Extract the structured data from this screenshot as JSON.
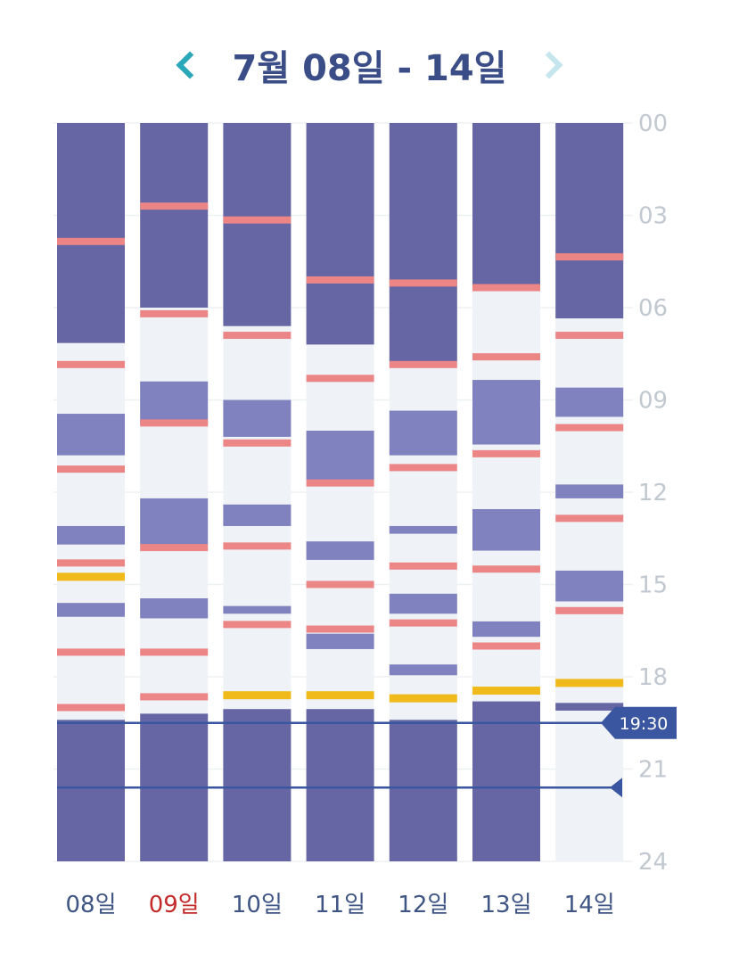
{
  "header": {
    "title": "7월 08일 - 14일",
    "prev_icon": "chevron-left-icon",
    "next_icon": "chevron-right-icon",
    "prev_color": "#2aa7b8",
    "next_color": "#c6e6ee"
  },
  "colors": {
    "sleep": "#6566a3",
    "light": "#8081bf",
    "awake": "#eff2f6",
    "meal": "#ec8585",
    "event": "#efba1a",
    "marker": "#3a56a0",
    "day_label": "#3f5584",
    "day_label_selected": "#c42b2b",
    "hour_label": "#c2c8d0"
  },
  "chart_data": {
    "type": "timeline",
    "y_unit": "hour",
    "y_range": [
      0,
      24
    ],
    "y_ticks": [
      "00",
      "03",
      "06",
      "09",
      "12",
      "15",
      "18",
      "21",
      "24"
    ],
    "now_marker": {
      "label": "19:30",
      "hour": 19.5
    },
    "second_marker": {
      "hour": 21.6
    },
    "days": [
      {
        "label": "08일",
        "selected": false,
        "blocks": [
          {
            "kind": "sleep",
            "start": 0,
            "end": 7.15
          },
          {
            "kind": "light",
            "start": 9.45,
            "end": 10.8
          },
          {
            "kind": "light",
            "start": 13.1,
            "end": 13.7
          },
          {
            "kind": "light",
            "start": 15.6,
            "end": 16.05
          },
          {
            "kind": "sleep",
            "start": 19.4,
            "end": 24
          }
        ],
        "marks": [
          {
            "kind": "meal",
            "hour": 3.85
          },
          {
            "kind": "meal",
            "hour": 7.85
          },
          {
            "kind": "meal",
            "hour": 11.25
          },
          {
            "kind": "meal",
            "hour": 14.3
          },
          {
            "kind": "event",
            "hour": 14.75
          },
          {
            "kind": "meal",
            "hour": 17.2
          },
          {
            "kind": "meal",
            "hour": 19.0
          }
        ]
      },
      {
        "label": "09일",
        "selected": true,
        "blocks": [
          {
            "kind": "sleep",
            "start": 0,
            "end": 6.0
          },
          {
            "kind": "light",
            "start": 8.4,
            "end": 9.8
          },
          {
            "kind": "light",
            "start": 12.2,
            "end": 13.7
          },
          {
            "kind": "light",
            "start": 15.45,
            "end": 16.1
          },
          {
            "kind": "sleep",
            "start": 19.2,
            "end": 24
          }
        ],
        "marks": [
          {
            "kind": "meal",
            "hour": 2.7
          },
          {
            "kind": "meal",
            "hour": 6.2
          },
          {
            "kind": "meal",
            "hour": 9.75
          },
          {
            "kind": "meal",
            "hour": 13.8
          },
          {
            "kind": "meal",
            "hour": 17.2
          },
          {
            "kind": "meal",
            "hour": 18.65
          }
        ]
      },
      {
        "label": "10일",
        "selected": false,
        "blocks": [
          {
            "kind": "sleep",
            "start": 0,
            "end": 6.6
          },
          {
            "kind": "light",
            "start": 9.0,
            "end": 10.2
          },
          {
            "kind": "light",
            "start": 12.4,
            "end": 13.1
          },
          {
            "kind": "light",
            "start": 15.7,
            "end": 15.95
          },
          {
            "kind": "sleep",
            "start": 19.05,
            "end": 24
          }
        ],
        "marks": [
          {
            "kind": "meal",
            "hour": 3.15
          },
          {
            "kind": "meal",
            "hour": 6.9
          },
          {
            "kind": "meal",
            "hour": 10.4
          },
          {
            "kind": "meal",
            "hour": 13.75
          },
          {
            "kind": "meal",
            "hour": 16.3
          },
          {
            "kind": "event",
            "hour": 18.6
          }
        ]
      },
      {
        "label": "11일",
        "selected": false,
        "blocks": [
          {
            "kind": "sleep",
            "start": 0,
            "end": 7.2
          },
          {
            "kind": "light",
            "start": 10.0,
            "end": 11.6
          },
          {
            "kind": "light",
            "start": 13.6,
            "end": 14.2
          },
          {
            "kind": "light",
            "start": 16.6,
            "end": 17.1
          },
          {
            "kind": "sleep",
            "start": 19.05,
            "end": 24
          }
        ],
        "marks": [
          {
            "kind": "meal",
            "hour": 5.1
          },
          {
            "kind": "meal",
            "hour": 8.3
          },
          {
            "kind": "meal",
            "hour": 11.7
          },
          {
            "kind": "meal",
            "hour": 15.0
          },
          {
            "kind": "meal",
            "hour": 16.45
          },
          {
            "kind": "event",
            "hour": 18.6
          }
        ]
      },
      {
        "label": "12일",
        "selected": false,
        "blocks": [
          {
            "kind": "sleep",
            "start": 0,
            "end": 7.75
          },
          {
            "kind": "light",
            "start": 9.35,
            "end": 10.8
          },
          {
            "kind": "light",
            "start": 13.1,
            "end": 13.35
          },
          {
            "kind": "light",
            "start": 15.3,
            "end": 15.95
          },
          {
            "kind": "light",
            "start": 17.6,
            "end": 17.95
          },
          {
            "kind": "sleep",
            "start": 19.4,
            "end": 24
          }
        ],
        "marks": [
          {
            "kind": "meal",
            "hour": 5.2
          },
          {
            "kind": "meal",
            "hour": 7.85
          },
          {
            "kind": "meal",
            "hour": 11.2
          },
          {
            "kind": "meal",
            "hour": 14.4
          },
          {
            "kind": "meal",
            "hour": 16.25
          },
          {
            "kind": "event",
            "hour": 18.7
          }
        ]
      },
      {
        "label": "13일",
        "selected": false,
        "blocks": [
          {
            "kind": "sleep",
            "start": 0,
            "end": 5.4
          },
          {
            "kind": "light",
            "start": 8.35,
            "end": 10.45
          },
          {
            "kind": "light",
            "start": 12.55,
            "end": 13.9
          },
          {
            "kind": "light",
            "start": 16.2,
            "end": 16.7
          },
          {
            "kind": "sleep",
            "start": 18.8,
            "end": 24
          }
        ],
        "marks": [
          {
            "kind": "meal",
            "hour": 5.35
          },
          {
            "kind": "meal",
            "hour": 7.6
          },
          {
            "kind": "meal",
            "hour": 10.75
          },
          {
            "kind": "meal",
            "hour": 14.5
          },
          {
            "kind": "meal",
            "hour": 17.0
          },
          {
            "kind": "event",
            "hour": 18.45
          }
        ]
      },
      {
        "label": "14일",
        "selected": false,
        "blocks": [
          {
            "kind": "sleep",
            "start": 0,
            "end": 6.35
          },
          {
            "kind": "light",
            "start": 8.6,
            "end": 9.55
          },
          {
            "kind": "light",
            "start": 11.75,
            "end": 12.2
          },
          {
            "kind": "light",
            "start": 14.55,
            "end": 15.55
          },
          {
            "kind": "sleep",
            "start": 18.85,
            "end": 19.1
          }
        ],
        "marks": [
          {
            "kind": "meal",
            "hour": 4.35
          },
          {
            "kind": "meal",
            "hour": 6.9
          },
          {
            "kind": "meal",
            "hour": 9.9
          },
          {
            "kind": "meal",
            "hour": 12.85
          },
          {
            "kind": "meal",
            "hour": 15.85
          },
          {
            "kind": "event",
            "hour": 18.2
          }
        ]
      }
    ]
  }
}
